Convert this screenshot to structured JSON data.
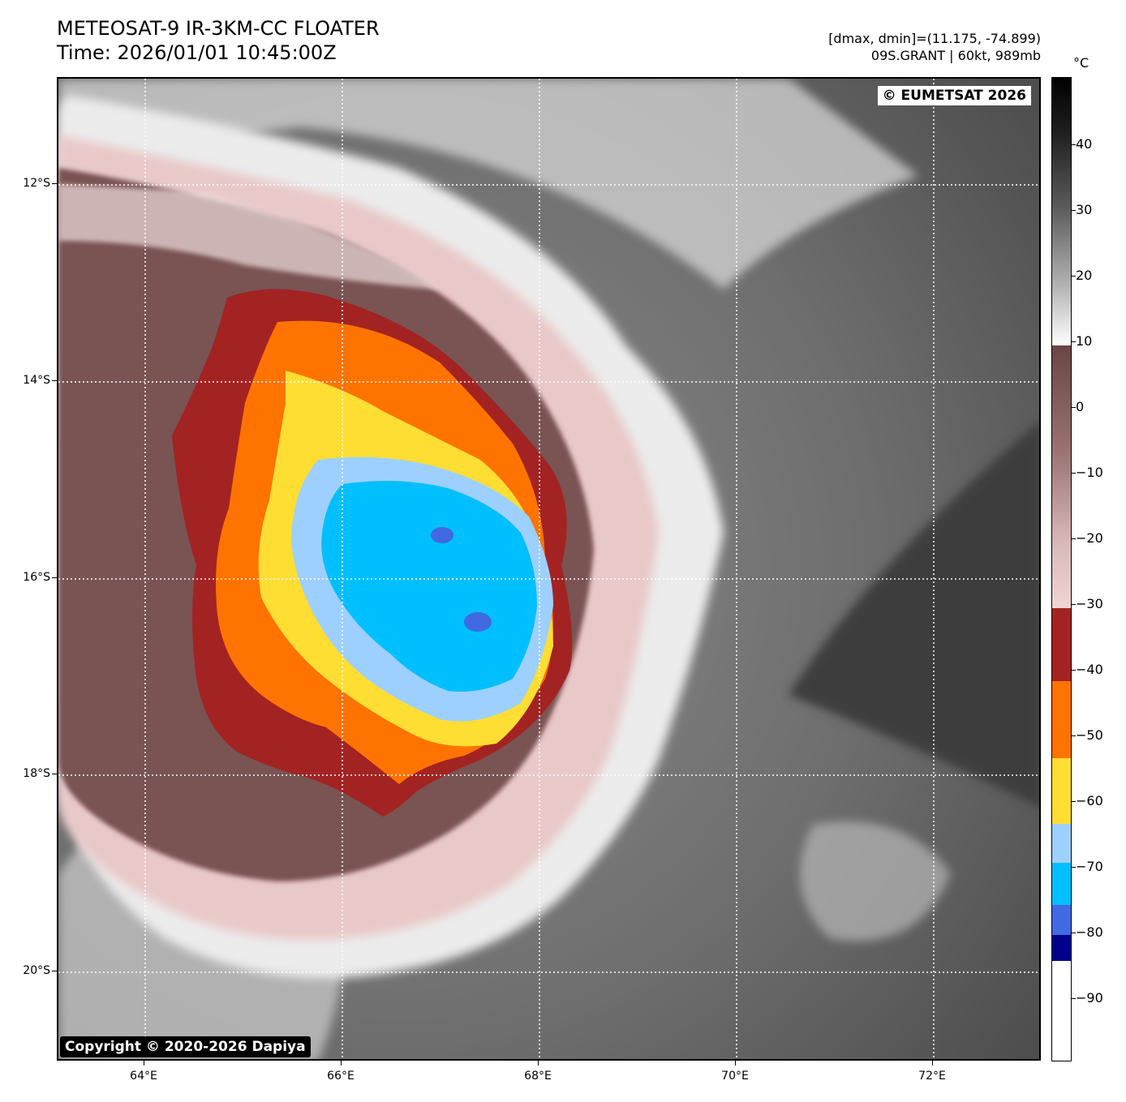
{
  "header": {
    "title": "METEOSAT-9 IR-3KM-CC FLOATER",
    "time": "Time: 2026/01/01 10:45:00Z",
    "dmax_dmin": "[dmax, dmin]=(11.175, -74.899)",
    "storm": "09S.GRANT | 60kt, 989mb"
  },
  "map": {
    "credit_top": "© EUMETSAT 2026",
    "credit_bottom": "Copyright © 2020-2026 Dapiya",
    "lat_labels": [
      "12°S",
      "14°S",
      "16°S",
      "18°S",
      "20°S"
    ],
    "lon_labels": [
      "64°E",
      "66°E",
      "68°E",
      "70°E",
      "72°E"
    ]
  },
  "colorbar": {
    "unit": "°C",
    "labels": [
      "40",
      "30",
      "20",
      "10",
      "0",
      "−10",
      "−20",
      "−30",
      "−40",
      "−50",
      "−60",
      "−70",
      "−80",
      "−90"
    ],
    "colors": {
      "black": "#000000",
      "gray": "#8a8a8a",
      "white": "#ffffff",
      "brown": "#6b4444",
      "pink": "#f2d4d4",
      "dark_red": "#a32323",
      "orange": "#ff7300",
      "yellow": "#ffde33",
      "light_blue": "#9ed0ff",
      "cyan": "#00bfff",
      "blue": "#4169e1",
      "navy": "#00008b"
    }
  }
}
